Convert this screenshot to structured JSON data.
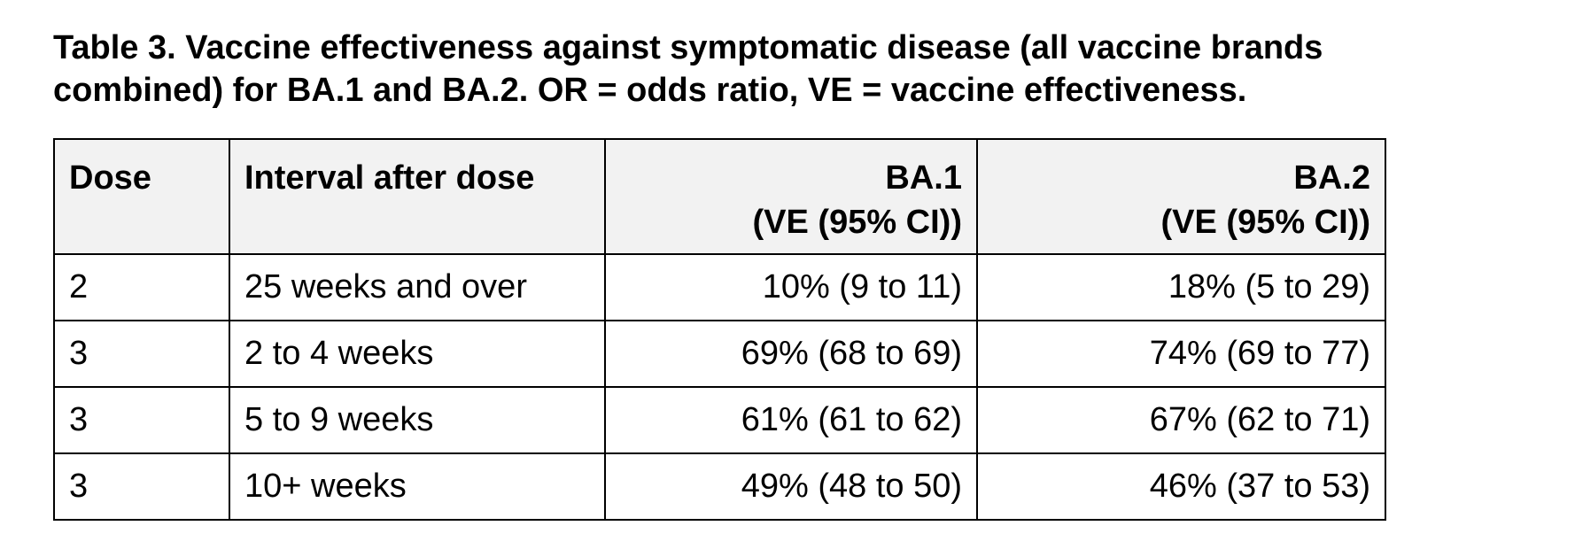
{
  "caption": {
    "line1": "Table 3. Vaccine effectiveness against symptomatic disease (all vaccine brands",
    "line2": "combined) for BA.1 and BA.2. OR = odds ratio, VE = vaccine effectiveness."
  },
  "table": {
    "headers": {
      "dose": "Dose",
      "interval": "Interval after dose",
      "ba1_title": "BA.1",
      "ba1_sub": "(VE (95% CI))",
      "ba2_title": "BA.2",
      "ba2_sub": "(VE (95% CI))"
    },
    "rows": [
      {
        "dose": "2",
        "interval": "25 weeks and over",
        "ba1": "10% (9 to 11)",
        "ba2": "18% (5 to 29)"
      },
      {
        "dose": "3",
        "interval": "2 to 4 weeks",
        "ba1": "69% (68 to 69)",
        "ba2": "74% (69 to 77)"
      },
      {
        "dose": "3",
        "interval": "5 to 9 weeks",
        "ba1": "61% (61 to 62)",
        "ba2": "67% (62 to 71)"
      },
      {
        "dose": "3",
        "interval": "10+ weeks",
        "ba1": "49% (48 to 50)",
        "ba2": "46% (37 to 53)"
      }
    ]
  }
}
